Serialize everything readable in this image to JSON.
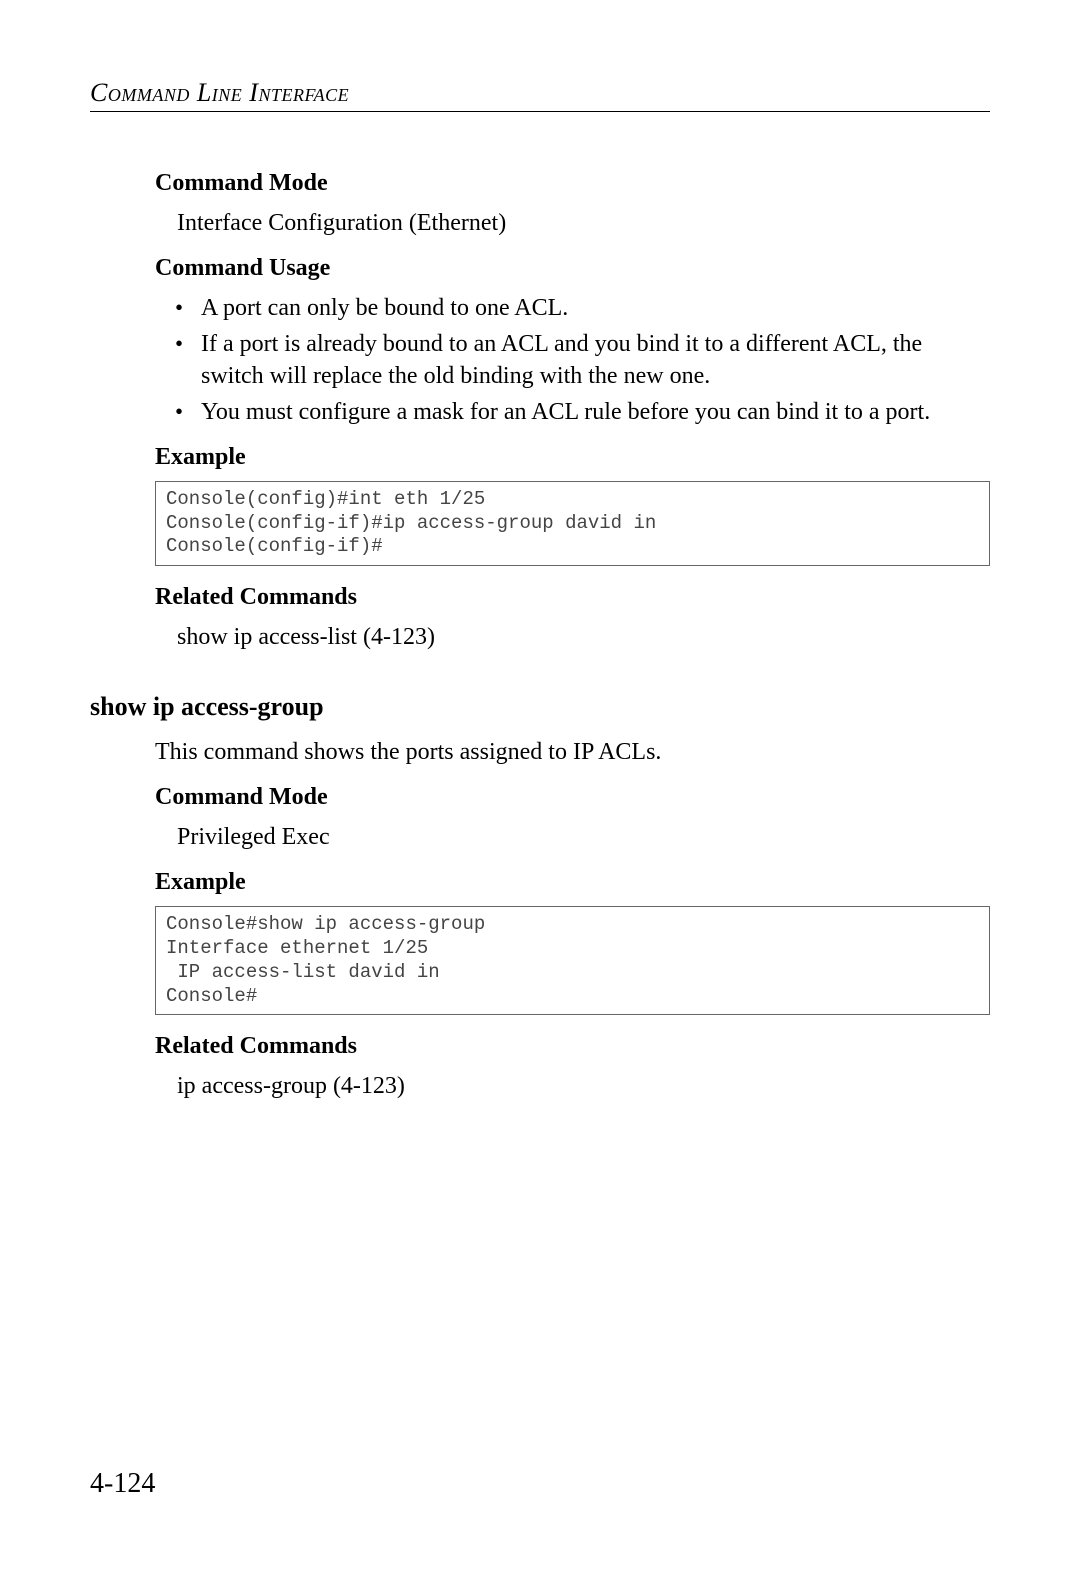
{
  "header": {
    "title": "Command Line Interface"
  },
  "sec1": {
    "h_cmdmode": "Command Mode",
    "cmdmode_text": "Interface Configuration (Ethernet)",
    "h_usage": "Command Usage",
    "usage_items": {
      "0": "A port can only be bound to one ACL.",
      "1": "If a port is already bound to an ACL and you bind it to a different ACL, the switch will replace the old binding with the new one.",
      "2": "You must configure a mask for an ACL rule before you can bind it to a port."
    },
    "h_example": "Example",
    "example_code": "Console(config)#int eth 1/25\nConsole(config-if)#ip access-group david in\nConsole(config-if)#",
    "h_related": "Related Commands",
    "related_text": "show ip access-list (4-123)"
  },
  "sec2": {
    "cmd_heading": "show ip access-group",
    "intro": "This command shows the ports assigned to IP ACLs.",
    "h_cmdmode": "Command Mode",
    "cmdmode_text": "Privileged Exec",
    "h_example": "Example",
    "example_code": "Console#show ip access-group\nInterface ethernet 1/25\n IP access-list david in\nConsole#",
    "h_related": "Related Commands",
    "related_text": "ip access-group (4-123)"
  },
  "page_number": "4-124"
}
